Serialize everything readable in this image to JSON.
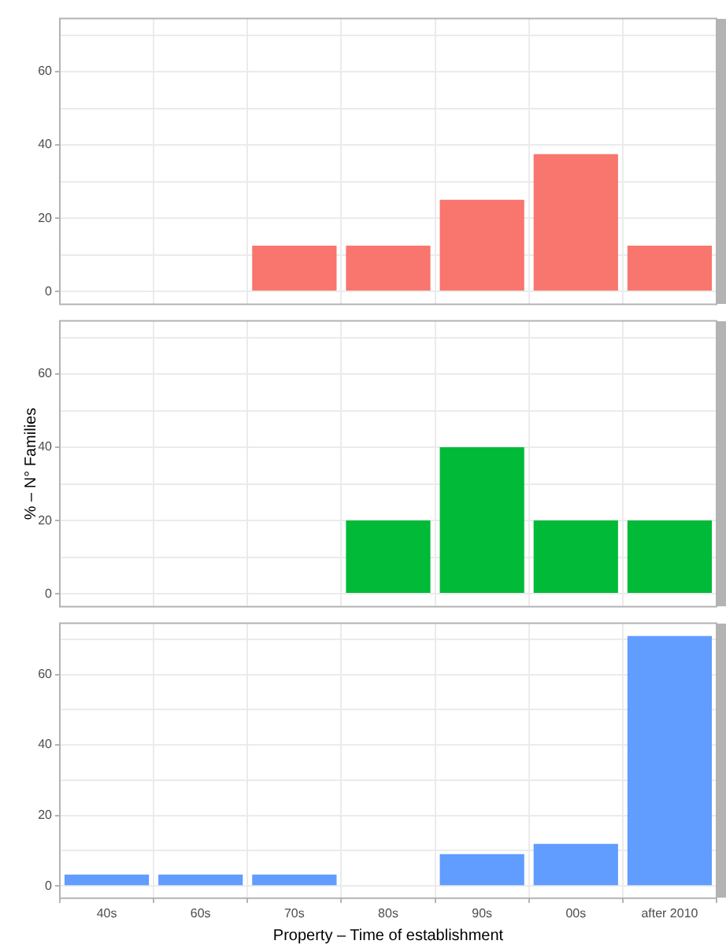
{
  "chart_data": [
    {
      "type": "bar",
      "categories": [
        null,
        null,
        null,
        null,
        null,
        null,
        null
      ],
      "values": [
        null,
        null,
        12.5,
        12.5,
        25,
        37.5,
        12.5
      ],
      "color": "#f8766d",
      "ylim": [
        -3.5,
        74.5
      ],
      "yticks": [
        0,
        {
          "value": 10,
          "label": null
        },
        20,
        {
          "value": 30,
          "label": null
        },
        40,
        {
          "value": 50,
          "label": null
        },
        60,
        {
          "value": 70,
          "label": null
        }
      ],
      "grid": true,
      "tick_labels": "y"
    },
    {
      "type": "bar",
      "ylabel": "% – N° Families",
      "categories": [
        null,
        null,
        null,
        null,
        null,
        null,
        null
      ],
      "values": [
        null,
        null,
        null,
        20,
        40,
        20,
        20
      ],
      "color": "#00ba38",
      "ylim": [
        -3.5,
        74.5
      ],
      "yticks": [
        0,
        {
          "value": 10,
          "label": null
        },
        20,
        {
          "value": 30,
          "label": null
        },
        40,
        {
          "value": 50,
          "label": null
        },
        60,
        {
          "value": 70,
          "label": null
        }
      ],
      "grid": true,
      "tick_labels": "y"
    },
    {
      "type": "bar",
      "xlabel": "Property – Time of establishment",
      "categories": [
        "40s",
        "60s",
        "70s",
        "80s",
        "90s",
        "00s",
        "after 2010"
      ],
      "values": [
        3.2,
        3.2,
        3.2,
        null,
        9,
        11.9,
        70.9
      ],
      "color": "#619cff",
      "ylim": [
        -3.5,
        74.5
      ],
      "yticks": [
        0,
        {
          "value": 10,
          "label": null
        },
        20,
        {
          "value": 30,
          "label": null
        },
        40,
        {
          "value": 50,
          "label": null
        },
        60,
        {
          "value": 70,
          "label": null
        }
      ],
      "grid": true
    }
  ]
}
